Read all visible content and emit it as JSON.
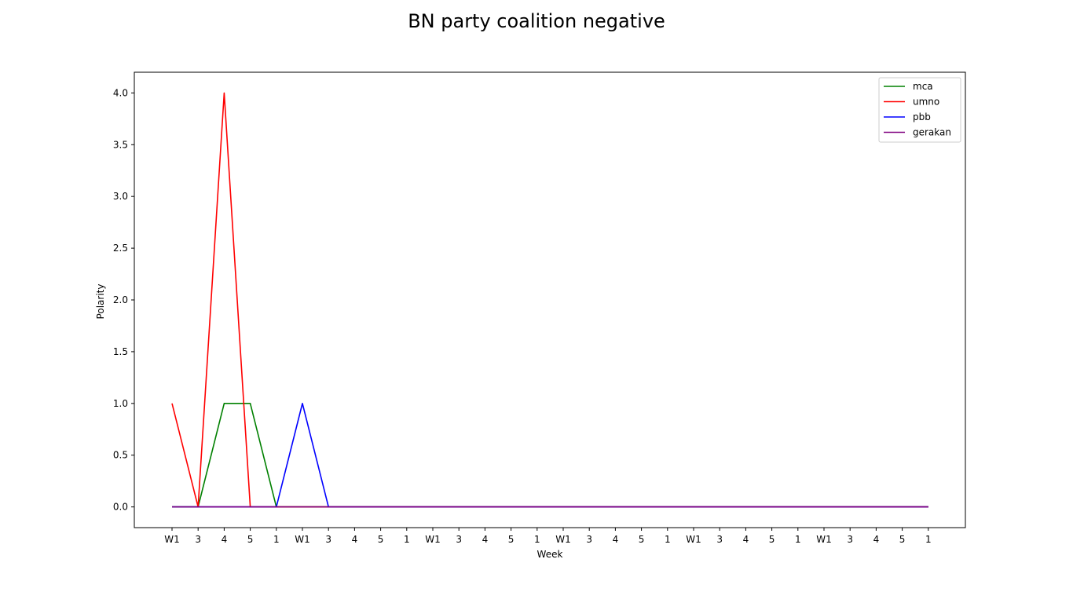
{
  "chart_data": {
    "type": "line",
    "title": "BN party coalition negative",
    "xlabel": "Week",
    "ylabel": "Polarity",
    "x": [
      "W1",
      "3",
      "4",
      "5",
      "1",
      "W1",
      "3",
      "4",
      "5",
      "1",
      "W1",
      "3",
      "4",
      "5",
      "1",
      "W1",
      "3",
      "4",
      "5",
      "1",
      "W1",
      "3",
      "4",
      "5",
      "1",
      "W1",
      "3",
      "4",
      "5",
      "1"
    ],
    "ylim": [
      -0.2,
      4.2
    ],
    "yticks": [
      "0.0",
      "0.5",
      "1.0",
      "1.5",
      "2.0",
      "2.5",
      "3.0",
      "3.5",
      "4.0"
    ],
    "grid": false,
    "legend_position": "top-right",
    "series": [
      {
        "name": "mca",
        "color": "#008000",
        "values": [
          0,
          0,
          1,
          1,
          0,
          0,
          0,
          0,
          0,
          0,
          0,
          0,
          0,
          0,
          0,
          0,
          0,
          0,
          0,
          0,
          0,
          0,
          0,
          0,
          0,
          0,
          0,
          0,
          0,
          0
        ]
      },
      {
        "name": "umno",
        "color": "#ff0000",
        "values": [
          1,
          0,
          4,
          0,
          0,
          0,
          0,
          0,
          0,
          0,
          0,
          0,
          0,
          0,
          0,
          0,
          0,
          0,
          0,
          0,
          0,
          0,
          0,
          0,
          0,
          0,
          0,
          0,
          0,
          0
        ]
      },
      {
        "name": "pbb",
        "color": "#0000ff",
        "values": [
          0,
          0,
          0,
          0,
          0,
          1,
          0,
          0,
          0,
          0,
          0,
          0,
          0,
          0,
          0,
          0,
          0,
          0,
          0,
          0,
          0,
          0,
          0,
          0,
          0,
          0,
          0,
          0,
          0,
          0
        ]
      },
      {
        "name": "gerakan",
        "color": "#800080",
        "values": [
          0,
          0,
          0,
          0,
          0,
          0,
          0,
          0,
          0,
          0,
          0,
          0,
          0,
          0,
          0,
          0,
          0,
          0,
          0,
          0,
          0,
          0,
          0,
          0,
          0,
          0,
          0,
          0,
          0,
          0
        ]
      }
    ]
  }
}
